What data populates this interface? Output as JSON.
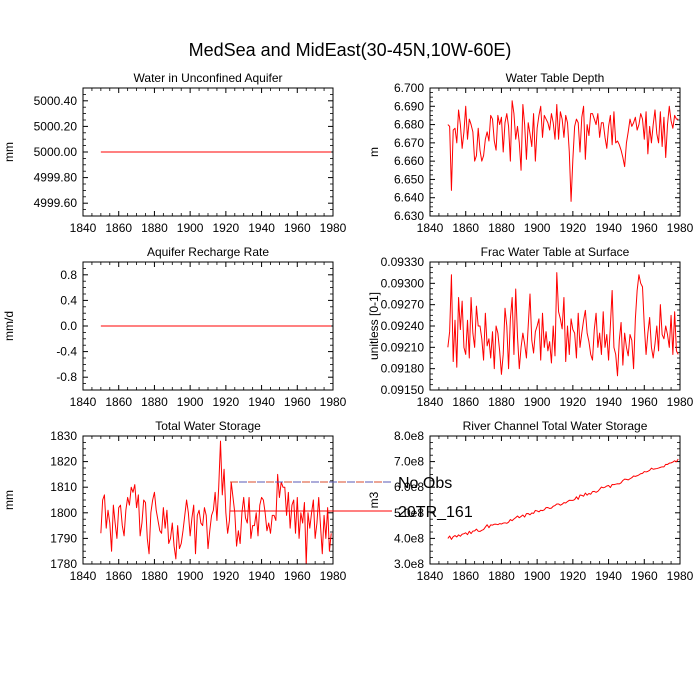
{
  "figure": {
    "title": "MedSea and MidEast(30-45N,10W-60E)"
  },
  "colors": {
    "model_line": "#ff0000",
    "obs_dash_a": "#d94b2b",
    "obs_dash_b": "#5a5ab4",
    "axis": "#000000"
  },
  "legend": {
    "entries": [
      {
        "label": "No Obs",
        "style": "dashed"
      },
      {
        "label": "20TR_161",
        "style": "solid"
      }
    ]
  },
  "chart_data": [
    {
      "type": "line",
      "title": "Water in Unconfined Aquifer",
      "ylabel": "mm",
      "xlim": [
        1840,
        1980
      ],
      "ylim": [
        4999.5,
        5000.5
      ],
      "xticks": [
        1840,
        1860,
        1880,
        1900,
        1920,
        1940,
        1960,
        1980
      ],
      "xticklabels": [
        "1840",
        "1860",
        "1880",
        "1900",
        "1920",
        "1940",
        "1960",
        "1980"
      ],
      "yticks": [
        4999.6,
        4999.8,
        5000.0,
        5000.2,
        5000.4
      ],
      "yticklabels": [
        "4999.60",
        "4999.80",
        "5000.00",
        "5000.20",
        "5000.40"
      ],
      "series": [
        {
          "name": "20TR_161",
          "x_start": 1850,
          "x_end": 1979,
          "constant": 5000.0
        }
      ]
    },
    {
      "type": "line",
      "title": "Water Table Depth",
      "ylabel": "m",
      "xlim": [
        1840,
        1980
      ],
      "ylim": [
        6.63,
        6.7
      ],
      "xticks": [
        1840,
        1860,
        1880,
        1900,
        1920,
        1940,
        1960,
        1980
      ],
      "xticklabels": [
        "1840",
        "1860",
        "1880",
        "1900",
        "1920",
        "1940",
        "1960",
        "1980"
      ],
      "yticks": [
        6.63,
        6.64,
        6.65,
        6.66,
        6.67,
        6.68,
        6.69,
        6.7
      ],
      "yticklabels": [
        "6.630",
        "6.640",
        "6.650",
        "6.660",
        "6.670",
        "6.680",
        "6.690",
        "6.700"
      ],
      "series": [
        {
          "name": "20TR_161",
          "x_start": 1850,
          "x_end": 1979,
          "constant": null,
          "values": [
            6.68,
            6.679,
            6.644,
            6.677,
            6.678,
            6.67,
            6.688,
            6.68,
            6.667,
            6.676,
            6.69,
            6.672,
            6.683,
            6.68,
            6.676,
            6.66,
            6.663,
            6.678,
            6.666,
            6.66,
            6.663,
            6.672,
            6.676,
            6.671,
            6.685,
            6.683,
            6.671,
            6.666,
            6.685,
            6.68,
            6.684,
            6.665,
            6.681,
            6.686,
            6.679,
            6.66,
            6.693,
            6.686,
            6.672,
            6.679,
            6.67,
            6.655,
            6.691,
            6.68,
            6.661,
            6.681,
            6.675,
            6.668,
            6.686,
            6.66,
            6.678,
            6.685,
            6.69,
            6.673,
            6.685,
            6.683,
            6.681,
            6.677,
            6.686,
            6.681,
            6.672,
            6.691,
            6.672,
            6.687,
            6.683,
            6.673,
            6.685,
            6.681,
            6.665,
            6.638,
            6.661,
            6.679,
            6.683,
            6.681,
            6.665,
            6.684,
            6.69,
            6.661,
            6.68,
            6.674,
            6.686,
            6.686,
            6.683,
            6.68,
            6.686,
            6.673,
            6.681,
            6.681,
            6.673,
            6.667,
            6.679,
            6.685,
            6.669,
            6.687,
            6.67,
            6.671,
            6.669,
            6.666,
            6.662,
            6.657,
            6.67,
            6.676,
            6.683,
            6.679,
            6.681,
            6.684,
            6.677,
            6.68,
            6.686,
            6.683,
            6.672,
            6.687,
            6.664,
            6.679,
            6.67,
            6.68,
            6.688,
            6.675,
            6.67,
            6.687,
            6.668,
            6.684,
            6.662,
            6.68,
            6.69,
            6.682,
            6.678,
            6.685,
            6.683,
            6.683
          ]
        }
      ]
    },
    {
      "type": "line",
      "title": "Aquifer Recharge Rate",
      "ylabel": "mm/d",
      "xlim": [
        1840,
        1980
      ],
      "ylim": [
        -1.0,
        1.0
      ],
      "xticks": [
        1840,
        1860,
        1880,
        1900,
        1920,
        1940,
        1960,
        1980
      ],
      "xticklabels": [
        "1840",
        "1860",
        "1880",
        "1900",
        "1920",
        "1940",
        "1960",
        "1980"
      ],
      "yticks": [
        -0.8,
        -0.4,
        0.0,
        0.4,
        0.8
      ],
      "yticklabels": [
        "-0.8",
        "-0.4",
        "0.0",
        "0.4",
        "0.8"
      ],
      "series": [
        {
          "name": "20TR_161",
          "x_start": 1850,
          "x_end": 1979,
          "constant": 0.0
        }
      ]
    },
    {
      "type": "line",
      "title": "Frac Water Table at Surface",
      "ylabel": "unitless [0-1]",
      "xlim": [
        1840,
        1980
      ],
      "ylim": [
        0.0915,
        0.0933
      ],
      "xticks": [
        1840,
        1860,
        1880,
        1900,
        1920,
        1940,
        1960,
        1980
      ],
      "xticklabels": [
        "1840",
        "1860",
        "1880",
        "1900",
        "1920",
        "1940",
        "1960",
        "1980"
      ],
      "yticks": [
        0.0915,
        0.0918,
        0.0921,
        0.0924,
        0.0927,
        0.093,
        0.0933
      ],
      "yticklabels": [
        "0.09150",
        "0.09180",
        "0.09210",
        "0.09240",
        "0.09270",
        "0.09300",
        "0.09330"
      ],
      "series": [
        {
          "name": "20TR_161",
          "x_start": 1850,
          "x_end": 1979,
          "constant": null,
          "values": [
            0.0921,
            0.09232,
            0.09312,
            0.0919,
            0.09248,
            0.09182,
            0.0928,
            0.09235,
            0.09275,
            0.0921,
            0.092,
            0.09248,
            0.09195,
            0.0928,
            0.0923,
            0.0921,
            0.09268,
            0.0924,
            0.0924,
            0.09222,
            0.09192,
            0.09258,
            0.09212,
            0.09222,
            0.09195,
            0.09232,
            0.0918,
            0.0924,
            0.0923,
            0.09205,
            0.09172,
            0.092,
            0.09265,
            0.0924,
            0.0918,
            0.0925,
            0.0928,
            0.092,
            0.09292,
            0.09225,
            0.0918,
            0.0921,
            0.0923,
            0.09215,
            0.09195,
            0.0924,
            0.09285,
            0.0922,
            0.09202,
            0.09232,
            0.0924,
            0.0925,
            0.09192,
            0.09258,
            0.0921,
            0.09232,
            0.09205,
            0.09218,
            0.09188,
            0.0924,
            0.09198,
            0.09315,
            0.0926,
            0.0925,
            0.09236,
            0.0928,
            0.0919,
            0.0924,
            0.092,
            0.0925,
            0.09235,
            0.0923,
            0.09195,
            0.09258,
            0.0921,
            0.0923,
            0.09248,
            0.09262,
            0.0923,
            0.09218,
            0.092,
            0.09192,
            0.09235,
            0.09258,
            0.0921,
            0.0923,
            0.092,
            0.0926,
            0.0921,
            0.09228,
            0.09192,
            0.0924,
            0.0929,
            0.0921,
            0.092,
            0.0917,
            0.0922,
            0.09245,
            0.09185,
            0.0923,
            0.0921,
            0.09198,
            0.09228,
            0.0922,
            0.0918,
            0.0925,
            0.0929,
            0.09312,
            0.093,
            0.09295,
            0.0924,
            0.092,
            0.0923,
            0.09252,
            0.0921,
            0.09195,
            0.09215,
            0.0924,
            0.09205,
            0.0927,
            0.09228,
            0.09222,
            0.0924,
            0.09228,
            0.0921,
            0.09255,
            0.092,
            0.0926,
            0.09205,
            0.092
          ]
        }
      ]
    },
    {
      "type": "line",
      "title": "Total Water Storage",
      "ylabel": "mm",
      "xlim": [
        1840,
        1980
      ],
      "ylim": [
        1780,
        1830
      ],
      "xticks": [
        1840,
        1860,
        1880,
        1900,
        1920,
        1940,
        1960,
        1980
      ],
      "xticklabels": [
        "1840",
        "1860",
        "1880",
        "1900",
        "1920",
        "1940",
        "1960",
        "1980"
      ],
      "yticks": [
        1780,
        1790,
        1800,
        1810,
        1820,
        1830
      ],
      "yticklabels": [
        "1780",
        "1790",
        "1800",
        "1810",
        "1820",
        "1830"
      ],
      "series": [
        {
          "name": "20TR_161",
          "x_start": 1850,
          "x_end": 1979,
          "constant": null,
          "values": [
            1792,
            1805,
            1807,
            1794,
            1801,
            1796,
            1785,
            1803,
            1796,
            1790,
            1802,
            1803,
            1795,
            1791,
            1801,
            1806,
            1803,
            1810,
            1808,
            1811,
            1802,
            1807,
            1791,
            1796,
            1805,
            1804,
            1790,
            1784,
            1800,
            1805,
            1808,
            1801,
            1797,
            1793,
            1792,
            1802,
            1794,
            1801,
            1788,
            1790,
            1796,
            1787,
            1782,
            1795,
            1786,
            1788,
            1793,
            1799,
            1805,
            1800,
            1791,
            1798,
            1803,
            1784,
            1799,
            1801,
            1796,
            1795,
            1802,
            1799,
            1786,
            1793,
            1799,
            1801,
            1808,
            1797,
            1810,
            1828,
            1807,
            1817,
            1800,
            1792,
            1797,
            1812,
            1806,
            1800,
            1787,
            1793,
            1788,
            1800,
            1806,
            1798,
            1796,
            1806,
            1790,
            1795,
            1795,
            1800,
            1791,
            1803,
            1806,
            1805,
            1800,
            1793,
            1796,
            1792,
            1799,
            1799,
            1797,
            1815,
            1806,
            1812,
            1810,
            1810,
            1799,
            1808,
            1794,
            1803,
            1805,
            1792,
            1806,
            1790,
            1800,
            1796,
            1804,
            1780,
            1800,
            1794,
            1800,
            1805,
            1790,
            1796,
            1806,
            1795,
            1784,
            1799,
            1790,
            1802,
            1785,
            1792
          ]
        }
      ]
    },
    {
      "type": "line",
      "title": "River Channel Total Water Storage",
      "ylabel": "m3",
      "xlim": [
        1840,
        1980
      ],
      "ylim": [
        300000000,
        800000000
      ],
      "xticks": [
        1840,
        1860,
        1880,
        1900,
        1920,
        1940,
        1960,
        1980
      ],
      "xticklabels": [
        "1840",
        "1860",
        "1880",
        "1900",
        "1920",
        "1940",
        "1960",
        "1980"
      ],
      "yticks": [
        300000000,
        400000000,
        500000000,
        600000000,
        700000000,
        800000000
      ],
      "yticklabels": [
        "3.0e8",
        "4.0e8",
        "5.0e8",
        "6.0e8",
        "7.0e8",
        "8.0e8"
      ],
      "series": [
        {
          "name": "20TR_161",
          "x_start": 1850,
          "x_end": 1979,
          "constant": null,
          "values": [
            400000000,
            409300000,
            396300000,
            406700000,
            411000000,
            405800000,
            413800000,
            408400000,
            416300000,
            418400000,
            421800000,
            414500000,
            427700000,
            418700000,
            428400000,
            429300000,
            436300000,
            428100000,
            427400000,
            431500000,
            434700000,
            444200000,
            453400000,
            441900000,
            452800000,
            451800000,
            455500000,
            455600000,
            453600000,
            457700000,
            456200000,
            459900000,
            460900000,
            458900000,
            463400000,
            473500000,
            469200000,
            475600000,
            481300000,
            487600000,
            480700000,
            485800000,
            491300000,
            483400000,
            496600000,
            497100000,
            492200000,
            499100000,
            497700000,
            509200000,
            507300000,
            503700000,
            510100000,
            508500000,
            511600000,
            520400000,
            520500000,
            517000000,
            518200000,
            525600000,
            528400000,
            534300000,
            534600000,
            529700000,
            533400000,
            539800000,
            538200000,
            544000000,
            548800000,
            548400000,
            548400000,
            551800000,
            562400000,
            552400000,
            569400000,
            568000000,
            564800000,
            577100000,
            568900000,
            575600000,
            572500000,
            582600000,
            583500000,
            580100000,
            584000000,
            591600000,
            600700000,
            597600000,
            600000000,
            604700000,
            606800000,
            598700000,
            610700000,
            609900000,
            611700000,
            613600000,
            612900000,
            617200000,
            626300000,
            631600000,
            630700000,
            628500000,
            633000000,
            637100000,
            643700000,
            642200000,
            644600000,
            648100000,
            652600000,
            654000000,
            661100000,
            659600000,
            661900000,
            665900000,
            674500000,
            670100000,
            671600000,
            672800000,
            674800000,
            677500000,
            679600000,
            679400000,
            689200000,
            688900000,
            693900000,
            695000000,
            698200000,
            703100000,
            699300000,
            710000000
          ]
        }
      ]
    }
  ]
}
